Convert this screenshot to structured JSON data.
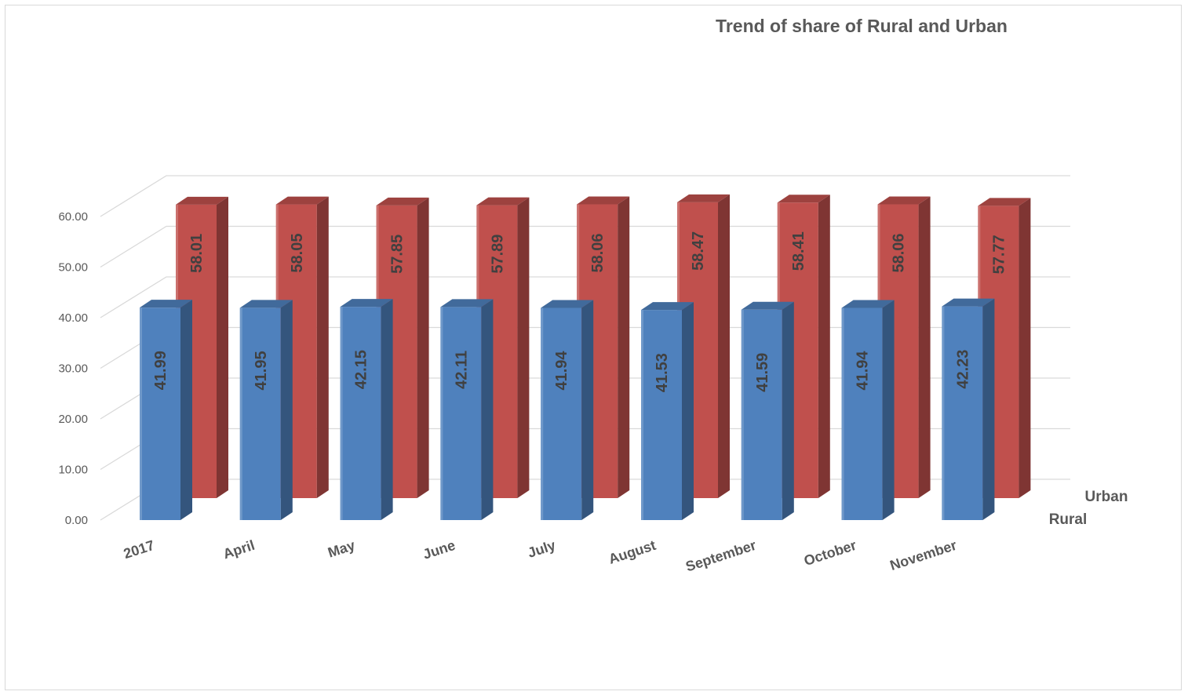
{
  "chart_data": {
    "type": "bar",
    "title": "Trend of  share of Rural and Urban",
    "categories": [
      "2017",
      "April",
      "May",
      "June",
      "July",
      "August",
      "September",
      "October",
      "November"
    ],
    "series": [
      {
        "name": "Rural",
        "values": [
          41.99,
          41.95,
          42.15,
          42.11,
          41.94,
          41.53,
          41.59,
          41.94,
          42.23
        ],
        "labels": [
          "41.99",
          "41.95",
          "42.15",
          "42.11",
          "41.94",
          "41.53",
          "41.59",
          "41.94",
          "42.23"
        ],
        "color": "#4F81BD"
      },
      {
        "name": "Urban",
        "values": [
          58.01,
          58.05,
          57.85,
          57.89,
          58.06,
          58.47,
          58.41,
          58.06,
          57.77
        ],
        "labels": [
          "58.01",
          "58.05",
          "57.85",
          "57.89",
          "58.06",
          "58.47",
          "58.41",
          "58.06",
          "57.77"
        ],
        "color": "#C0504D"
      }
    ],
    "yticks": [
      "0.00",
      "10.00",
      "20.00",
      "30.00",
      "40.00",
      "50.00",
      "60.00"
    ],
    "ylim": [
      0,
      60
    ],
    "xlabel": "",
    "ylabel": "",
    "grid": true,
    "three_d": true
  }
}
